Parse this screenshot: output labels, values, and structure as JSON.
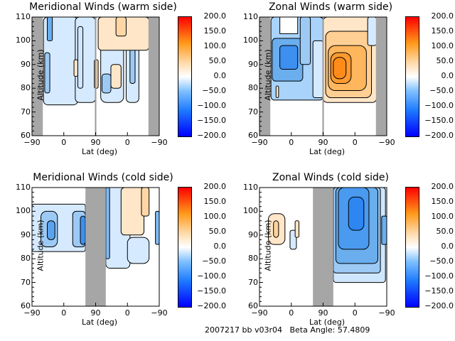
{
  "chart_data": [
    {
      "type": "heatmap",
      "title": "Meridional Winds (warm side)",
      "xlabel": "Lat (deg)",
      "ylabel": "Altitude (km)",
      "xticks": [
        "-90",
        "0",
        "90",
        "0",
        "-90"
      ],
      "yticks": [
        "60",
        "70",
        "80",
        "90",
        "100",
        "110"
      ],
      "ylim": [
        60,
        110
      ],
      "colorbar": {
        "ticks": [
          "200.0",
          "150.0",
          "100.0",
          "50.0",
          "0.0",
          "-50.0",
          "-100.0",
          "-150.0",
          "-200.0"
        ],
        "range": [
          -200,
          200
        ]
      },
      "masked_regions": [
        [
          "-90",
          "-70"
        ],
        [
          "-70",
          "-90 (right)"
        ]
      ],
      "features": [
        {
          "sign": "negative",
          "lat_range": "-70 to 45 (left half)",
          "alt": [
            73,
            110
          ],
          "magnitude": "weak"
        },
        {
          "sign": "negative",
          "lat_range": "60 to -10 (right half)",
          "alt": [
            73,
            103
          ],
          "magnitude": "weak-moderate"
        },
        {
          "sign": "positive",
          "lat_range": "90 to -70 (right half)",
          "alt": [
            80,
            110
          ],
          "magnitude": "weak"
        }
      ]
    },
    {
      "type": "heatmap",
      "title": "Zonal Winds (warm side)",
      "xlabel": "Lat (deg)",
      "ylabel": "Altitude (km)",
      "xticks": [
        "-90",
        "0",
        "90",
        "0",
        "-90"
      ],
      "yticks": [
        "60",
        "70",
        "80",
        "90",
        "100",
        "110"
      ],
      "ylim": [
        60,
        110
      ],
      "colorbar": {
        "ticks": [
          "200.0",
          "150.0",
          "100.0",
          "50.0",
          "0.0",
          "-50.0",
          "-100.0",
          "-150.0",
          "-200.0"
        ],
        "range": [
          -200,
          200
        ]
      },
      "features": [
        {
          "sign": "negative",
          "lat_range": "-70 to 90 (left half)",
          "alt": [
            75,
            110
          ],
          "magnitude": "up to -100"
        },
        {
          "sign": "positive",
          "lat_range": "90 to -70 (right half)",
          "alt": [
            74,
            110
          ],
          "magnitude": "up to +110"
        }
      ]
    },
    {
      "type": "heatmap",
      "title": "Meridional Winds (cold side)",
      "xlabel": "Lat (deg)",
      "ylabel": "Altitude (km)",
      "xticks": [
        "-90",
        "0",
        "90",
        "0",
        "-90"
      ],
      "yticks": [
        "60",
        "70",
        "80",
        "90",
        "100",
        "110"
      ],
      "ylim": [
        60,
        110
      ],
      "colorbar": {
        "ticks": [
          "200.0",
          "150.0",
          "100.0",
          "50.0",
          "0.0",
          "-50.0",
          "-100.0",
          "-150.0",
          "-200.0"
        ],
        "range": [
          -200,
          200
        ]
      },
      "features": [
        {
          "sign": "negative",
          "lat_range": "-90 to 65 (left half)",
          "alt": [
            83,
            103
          ],
          "magnitude": "up to -100"
        },
        {
          "sign": "negative",
          "lat_range": "120 to 30",
          "alt": [
            77,
            110
          ],
          "magnitude": "weak"
        },
        {
          "sign": "positive",
          "lat_range": "30 to -60",
          "alt": [
            95,
            110
          ],
          "magnitude": "weak"
        }
      ]
    },
    {
      "type": "heatmap",
      "title": "Zonal Winds (cold side)",
      "xlabel": "Lat (deg)",
      "ylabel": "Altitude (km)",
      "xticks": [
        "-90",
        "0",
        "90",
        "0",
        "-90"
      ],
      "yticks": [
        "60",
        "70",
        "80",
        "90",
        "100",
        "110"
      ],
      "ylim": [
        60,
        110
      ],
      "colorbar": {
        "ticks": [
          "200.0",
          "150.0",
          "100.0",
          "50.0",
          "0.0",
          "-50.0",
          "-100.0",
          "-150.0",
          "-200.0"
        ],
        "range": [
          -200,
          200
        ]
      },
      "features": [
        {
          "sign": "positive",
          "lat_range": "-70 to -30",
          "alt": [
            86,
            99
          ],
          "magnitude": "up to +50"
        },
        {
          "sign": "negative",
          "lat_range": "120 to -90",
          "alt": [
            70,
            110
          ],
          "magnitude": "up to -100"
        }
      ]
    }
  ],
  "footer": "2007217 bb v03r04   Beta Angle: 57.4809"
}
